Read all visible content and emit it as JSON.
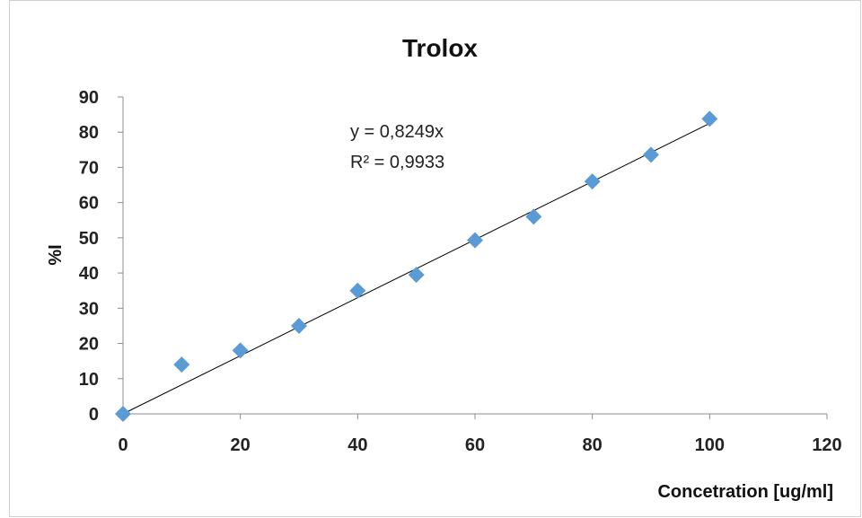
{
  "chart_data": {
    "type": "scatter",
    "title": "Trolox",
    "xlabel": "Concetration [ug/ml]",
    "ylabel": "%I",
    "xlim": [
      0,
      120
    ],
    "ylim": [
      0,
      90
    ],
    "x_ticks": [
      0,
      20,
      40,
      60,
      80,
      100,
      120
    ],
    "y_ticks": [
      0,
      10,
      20,
      30,
      40,
      50,
      60,
      70,
      80,
      90
    ],
    "grid": false,
    "legend": "none",
    "series": [
      {
        "x": [
          0,
          10,
          20,
          30,
          40,
          50,
          60,
          70,
          80,
          90,
          100
        ],
        "y": [
          0,
          14,
          18,
          25,
          35,
          39.5,
          49.3,
          56,
          66,
          73.6,
          83.8
        ],
        "marker": "diamond",
        "color": "#5b9bd5"
      }
    ],
    "trendline": {
      "type": "linear",
      "slope": 0.8249,
      "intercept": 0,
      "color": "#000000",
      "x_range": [
        0,
        100
      ]
    },
    "annotations": [
      "y = 0,8249x",
      "R² = 0,9933"
    ]
  }
}
